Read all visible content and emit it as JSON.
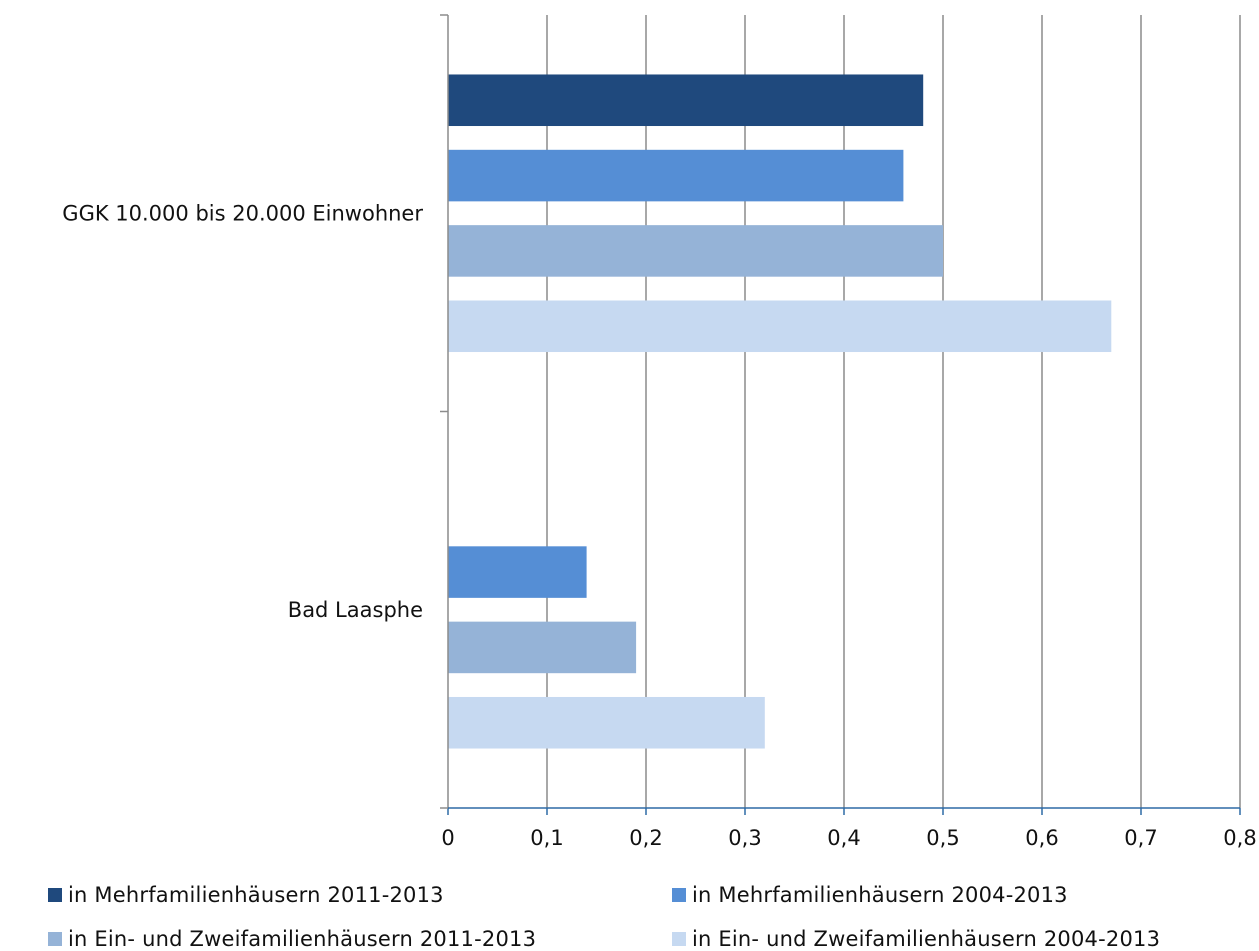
{
  "chart_data": {
    "type": "bar",
    "orientation": "horizontal",
    "categories": [
      "GGK 10.000 bis 20.000 Einwohner",
      "Bad Laasphe"
    ],
    "series": [
      {
        "name": "in Mehrfamilienhäusern 2011-2013",
        "color": "#1f497d",
        "values": [
          0.48,
          null
        ]
      },
      {
        "name": "in Mehrfamilienhäusern 2004-2013",
        "color": "#558ed5",
        "values": [
          0.46,
          0.14
        ]
      },
      {
        "name": "in Ein- und Zweifamilienhäusern 2011-2013",
        "color": "#95b3d7",
        "values": [
          0.5,
          0.19
        ]
      },
      {
        "name": "in Ein- und Zweifamilienhäusern 2004-2013",
        "color": "#c6d9f1",
        "values": [
          0.67,
          0.32
        ]
      }
    ],
    "x_ticks": [
      "0",
      "0,1",
      "0,2",
      "0,3",
      "0,4",
      "0,5",
      "0,6",
      "0,7",
      "0,8"
    ],
    "xlim": [
      0,
      0.8
    ],
    "grid": "vertical",
    "legend_position": "bottom",
    "title": "",
    "xlabel": "",
    "ylabel": ""
  }
}
